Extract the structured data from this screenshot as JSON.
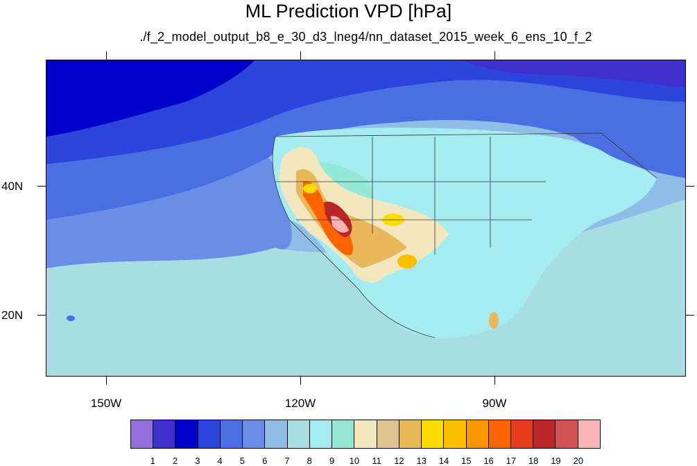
{
  "title": "ML Prediction VPD [hPa]",
  "subtitle": "./f_2_model_output_b8_e_30_d3_lneg4/nn_dataset_2015_week_6_ens_10_f_2",
  "axes": {
    "lat_labels": [
      "40N",
      "20N"
    ],
    "lon_labels": [
      "150W",
      "120W",
      "90W"
    ]
  },
  "colorbar": {
    "labels": [
      "1",
      "2",
      "3",
      "4",
      "5",
      "6",
      "7",
      "8",
      "9",
      "10",
      "11",
      "12",
      "13",
      "14",
      "15",
      "16",
      "17",
      "18",
      "19",
      "20"
    ],
    "colors": [
      "#9370db",
      "#3f2fce",
      "#0000cc",
      "#2b45dc",
      "#4a6fe3",
      "#6a8ee8",
      "#8fbde8",
      "#a8dde3",
      "#a4ecf0",
      "#96e8d6",
      "#f3e7c0",
      "#e0c48f",
      "#e9b85a",
      "#fddc00",
      "#fcbf00",
      "#fb9500",
      "#fb6400",
      "#e8391c",
      "#bb2525",
      "#d05252",
      "#fbb4b4"
    ]
  },
  "map": {
    "colors": {
      "ocean_deep": "#0000cc",
      "ocean_blue": "#2b45dc",
      "ocean_mid": "#4a6fe3",
      "ocean_light": "#6a8ee8",
      "ocean_pale": "#8fbde8",
      "ocean_cyan": "#a8dde3",
      "land_pale": "#a4ecf0",
      "land_teal": "#96e8d6",
      "tan": "#f3e7c0",
      "tan_dark": "#e0c48f",
      "orange": "#e9b85a",
      "yellow": "#fddc00",
      "hot": "#fb6400",
      "very_hot": "#bb2525",
      "pink": "#fbb4b4"
    }
  }
}
